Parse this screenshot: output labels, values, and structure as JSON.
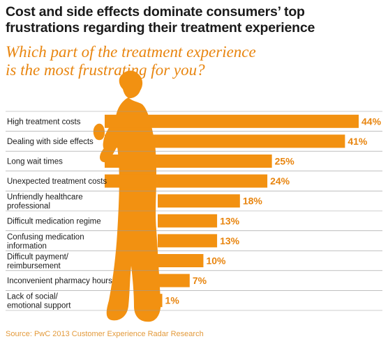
{
  "title": "Cost and side effects dominate consumers’ top\nfrustrations regarding their treatment experience",
  "subtitle": "Which part of the treatment experience\nis the most frustrating for you?",
  "source": "Source: PwC 2013 Customer Experience Radar Research",
  "colors": {
    "bar": "#f29111",
    "subtitle": "#e8850f",
    "value_label": "#e8850f",
    "source": "#e39a3b",
    "divider": "#999999"
  },
  "chart_data": {
    "type": "bar",
    "orientation": "horizontal",
    "value_format": "percent",
    "categories": [
      "High treatment costs",
      "Dealing with side effects",
      "Long wait times",
      "Unexpected treatment costs",
      "Unfriendly healthcare\nprofessional",
      "Difficult medication regime",
      "Confusing medication\ninformation",
      "Difficult payment/\nreimbursement",
      "Inconvenient pharmacy hours",
      "Lack of social/\nemotional support"
    ],
    "values": [
      44,
      41,
      25,
      24,
      18,
      13,
      13,
      10,
      7,
      1
    ],
    "xlim": [
      0,
      44
    ],
    "grid": false,
    "legend": "none"
  }
}
